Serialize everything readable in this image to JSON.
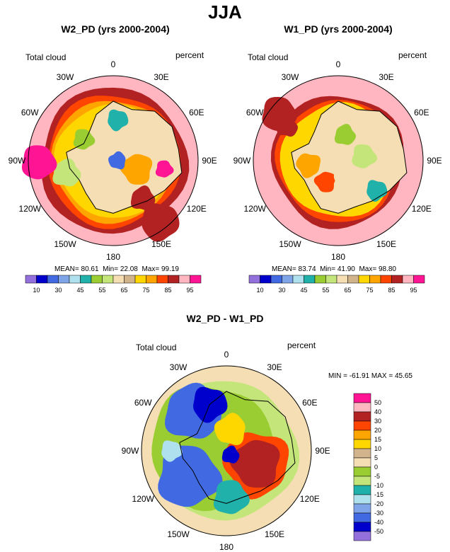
{
  "title": "JJA",
  "chart_data": [
    {
      "type": "heatmap",
      "projection": "polar-stereographic-south",
      "title": "W2_PD (yrs 2000-2004)",
      "left_label": "Total cloud",
      "right_label": "percent",
      "lon_labels": [
        "0",
        "30E",
        "60E",
        "90E",
        "120E",
        "150E",
        "180",
        "150W",
        "120W",
        "90W",
        "60W",
        "30W"
      ],
      "stats": {
        "mean_label": "MEAN=",
        "mean": "80.61",
        "min_label": "Min=",
        "min": "22.08",
        "max_label": "Max=",
        "max": "99.19"
      },
      "colorbar_ticks": [
        "10",
        "30",
        "45",
        "55",
        "65",
        "75",
        "85",
        "95"
      ],
      "colorbar_colors": [
        "#9370db",
        "#0000cd",
        "#4169e1",
        "#7fa5e8",
        "#afe0ee",
        "#20b2aa",
        "#9acd32",
        "#c4e57a",
        "#f5deb3",
        "#d2b48c",
        "#ffd700",
        "#ffa500",
        "#ff4500",
        "#b22222",
        "#ffb6c1",
        "#ff1493"
      ]
    },
    {
      "type": "heatmap",
      "projection": "polar-stereographic-south",
      "title": "W1_PD (yrs 2000-2004)",
      "left_label": "Total cloud",
      "right_label": "percent",
      "lon_labels": [
        "0",
        "30E",
        "60E",
        "90E",
        "120E",
        "150E",
        "180",
        "150W",
        "120W",
        "90W",
        "60W",
        "30W"
      ],
      "stats": {
        "mean_label": "MEAN=",
        "mean": "83.74",
        "min_label": "Min=",
        "min": "41.90",
        "max_label": "Max=",
        "max": "98.80"
      },
      "colorbar_ticks": [
        "10",
        "30",
        "45",
        "55",
        "65",
        "75",
        "85",
        "95"
      ],
      "colorbar_colors": [
        "#9370db",
        "#0000cd",
        "#4169e1",
        "#7fa5e8",
        "#afe0ee",
        "#20b2aa",
        "#9acd32",
        "#c4e57a",
        "#f5deb3",
        "#d2b48c",
        "#ffd700",
        "#ffa500",
        "#ff4500",
        "#b22222",
        "#ffb6c1",
        "#ff1493"
      ]
    },
    {
      "type": "heatmap",
      "projection": "polar-stereographic-south",
      "title": "W2_PD - W1_PD",
      "left_label": "Total cloud",
      "right_label": "percent",
      "lon_labels": [
        "0",
        "30E",
        "60E",
        "90E",
        "120E",
        "150E",
        "180",
        "150W",
        "120W",
        "90W",
        "60W",
        "30W"
      ],
      "stats": {
        "min_label": "MIN =",
        "min": "-61.91",
        "max_label": "MAX =",
        "max": "45.65"
      },
      "colorbar_ticks": [
        "50",
        "40",
        "30",
        "20",
        "15",
        "10",
        "5",
        "0",
        "-5",
        "-10",
        "-15",
        "-20",
        "-30",
        "-40",
        "-50"
      ],
      "colorbar_colors": [
        "#ff1493",
        "#ffb6c1",
        "#b22222",
        "#ff4500",
        "#ffa500",
        "#ffd700",
        "#d2b48c",
        "#f5deb3",
        "#9acd32",
        "#c4e57a",
        "#20b2aa",
        "#afe0ee",
        "#7fa5e8",
        "#4169e1",
        "#0000cd",
        "#9370db"
      ]
    }
  ]
}
